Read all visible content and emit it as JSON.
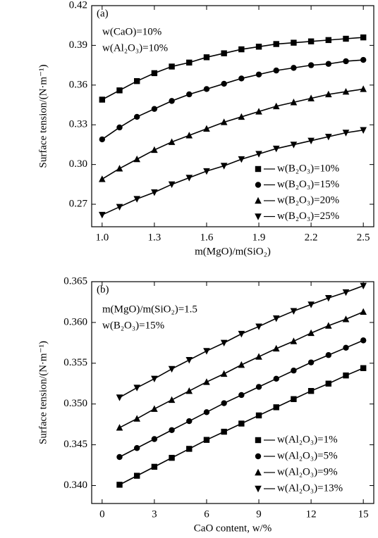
{
  "chart_data": [
    {
      "type": "line",
      "panel_label": "(a)",
      "annotations": [
        "w(CaO)=10%",
        "w(Al₂O₃)=10%"
      ],
      "x_label": "m(MgO)/m(SiO₂)",
      "y_label": "Surface tension/(N·m⁻¹)",
      "x": [
        1.0,
        1.1,
        1.2,
        1.3,
        1.4,
        1.5,
        1.6,
        1.7,
        1.8,
        1.9,
        2.0,
        2.1,
        2.2,
        2.3,
        2.4,
        2.5
      ],
      "xlim": [
        0.94,
        2.56
      ],
      "xticks": [
        {
          "value": 1,
          "label": "1.0"
        },
        1.3,
        1.6,
        1.9,
        2.2,
        2.5
      ],
      "ylim": [
        0.253,
        0.42
      ],
      "yticks": [
        0.27,
        {
          "value": 0.3,
          "label": "0.30"
        },
        0.33,
        0.36,
        0.39,
        0.42
      ],
      "legend": "lower right",
      "series": [
        {
          "name": "w(B₂O₃)=10%",
          "color": "#000000",
          "marker": "square",
          "values": [
            0.349,
            0.356,
            0.363,
            0.369,
            0.374,
            0.377,
            0.381,
            0.384,
            0.387,
            0.389,
            0.391,
            0.392,
            0.393,
            0.394,
            0.395,
            0.396
          ]
        },
        {
          "name": "w(B₂O₃)=15%",
          "color": "#000000",
          "marker": "circle",
          "values": [
            0.319,
            0.328,
            0.336,
            0.342,
            0.348,
            0.353,
            0.357,
            0.361,
            0.365,
            0.368,
            0.371,
            0.373,
            0.375,
            0.376,
            0.378,
            0.379
          ]
        },
        {
          "name": "w(B₂O₃)=20%",
          "color": "#000000",
          "marker": "triangle-up",
          "values": [
            0.289,
            0.297,
            0.304,
            0.311,
            0.317,
            0.322,
            0.327,
            0.332,
            0.336,
            0.34,
            0.344,
            0.347,
            0.35,
            0.353,
            0.355,
            0.357
          ]
        },
        {
          "name": "w(B₂O₃)=25%",
          "color": "#000000",
          "marker": "triangle-down",
          "values": [
            0.262,
            0.268,
            0.274,
            0.279,
            0.285,
            0.29,
            0.295,
            0.299,
            0.304,
            0.308,
            0.312,
            0.315,
            0.318,
            0.321,
            0.324,
            0.326
          ]
        }
      ]
    },
    {
      "type": "line",
      "panel_label": "(b)",
      "annotations": [
        "m(MgO)/m(SiO₂)=1.5",
        "w(B₂O₃)=15%"
      ],
      "x_label": "CaO content, w/%",
      "y_label": "Surface tension/(N·m⁻¹)",
      "x": [
        1,
        2,
        3,
        4,
        5,
        6,
        7,
        8,
        9,
        10,
        11,
        12,
        13,
        14,
        15
      ],
      "xlim": [
        -0.6,
        15.6
      ],
      "xticks": [
        0,
        3,
        6,
        9,
        12,
        15
      ],
      "ylim": [
        0.3378,
        0.365
      ],
      "yticks": [
        {
          "value": 0.34,
          "label": "0.340"
        },
        0.345,
        {
          "value": 0.35,
          "label": "0.350"
        },
        0.355,
        {
          "value": 0.36,
          "label": "0.360"
        },
        0.365
      ],
      "legend": "lower right",
      "series": [
        {
          "name": "w(Al₂O₃)=1%",
          "color": "#000000",
          "marker": "square",
          "values": [
            0.3401,
            0.3412,
            0.3423,
            0.3434,
            0.3445,
            0.3456,
            0.3466,
            0.3476,
            0.3486,
            0.3496,
            0.3506,
            0.3516,
            0.3525,
            0.3535,
            0.3544
          ]
        },
        {
          "name": "w(Al₂O₃)=5%",
          "color": "#000000",
          "marker": "circle",
          "values": [
            0.3435,
            0.3446,
            0.3457,
            0.3468,
            0.3479,
            0.349,
            0.3501,
            0.3511,
            0.3521,
            0.3531,
            0.3541,
            0.3551,
            0.356,
            0.3569,
            0.3578
          ]
        },
        {
          "name": "w(Al₂O₃)=9%",
          "color": "#000000",
          "marker": "triangle-up",
          "values": [
            0.3471,
            0.3482,
            0.3494,
            0.3505,
            0.3516,
            0.3527,
            0.3537,
            0.3548,
            0.3558,
            0.3568,
            0.3577,
            0.3587,
            0.3596,
            0.3604,
            0.3613
          ]
        },
        {
          "name": "w(Al₂O₃)=13%",
          "color": "#000000",
          "marker": "triangle-down",
          "values": [
            0.3508,
            0.352,
            0.3531,
            0.3543,
            0.3554,
            0.3565,
            0.3575,
            0.3586,
            0.3595,
            0.3605,
            0.3614,
            0.3622,
            0.363,
            0.3637,
            0.3645
          ]
        }
      ]
    }
  ]
}
